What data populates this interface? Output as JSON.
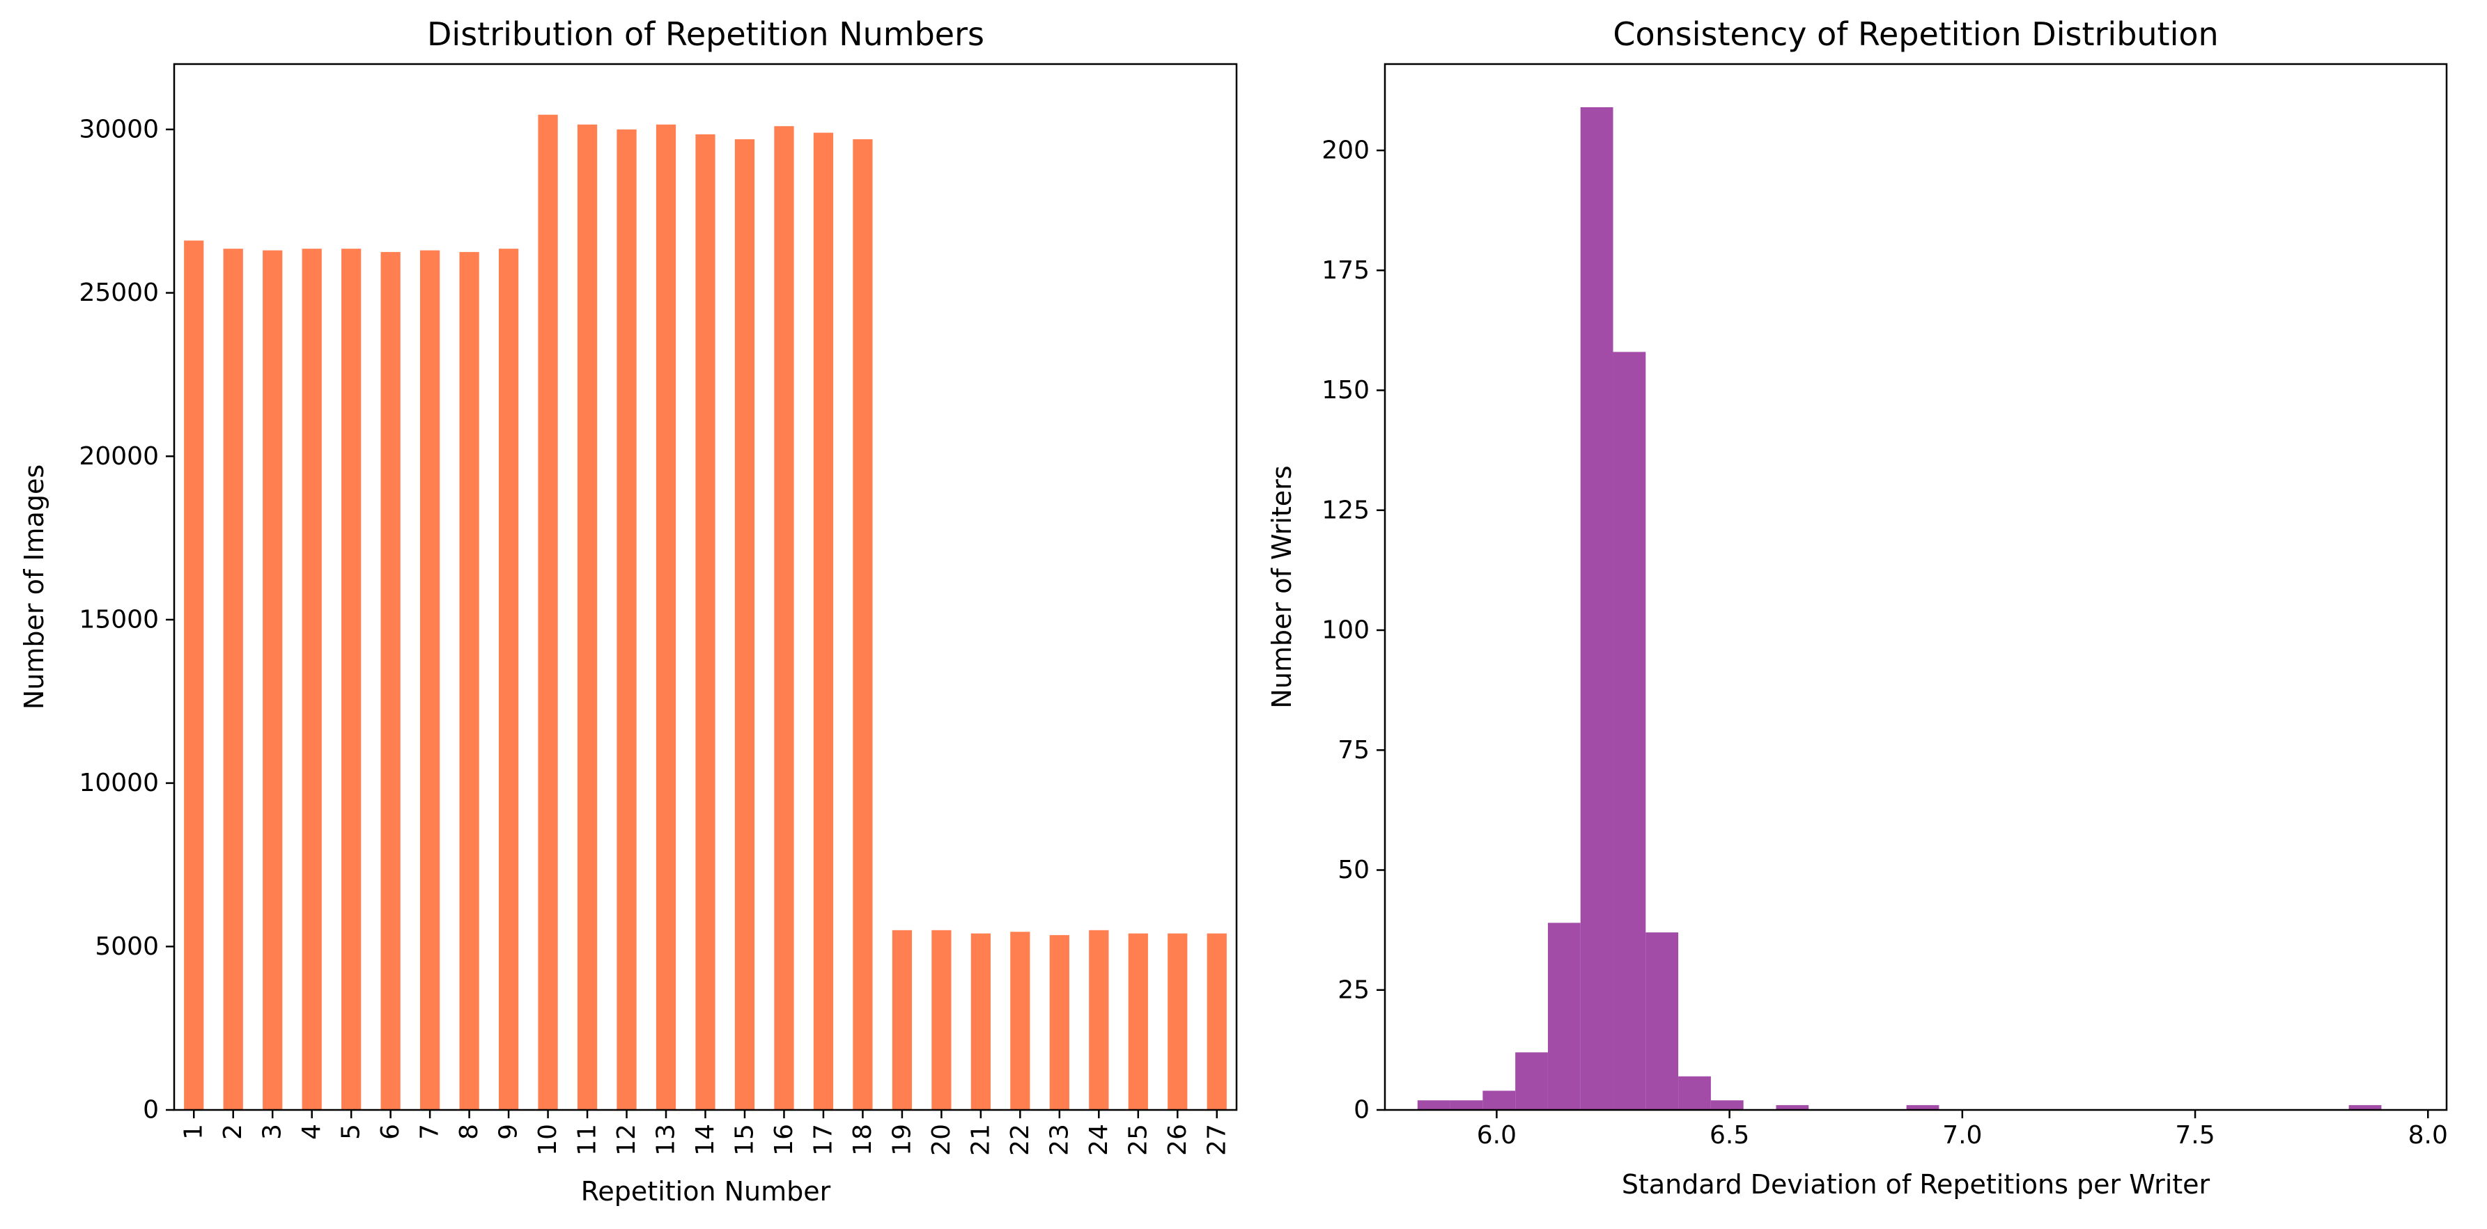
{
  "chart_data": [
    {
      "type": "bar",
      "title": "Distribution of Repetition Numbers",
      "xlabel": "Repetition Number",
      "ylabel": "Number of Images",
      "categories": [
        "1",
        "2",
        "3",
        "4",
        "5",
        "6",
        "7",
        "8",
        "9",
        "10",
        "11",
        "12",
        "13",
        "14",
        "15",
        "16",
        "17",
        "18",
        "19",
        "20",
        "21",
        "22",
        "23",
        "24",
        "25",
        "26",
        "27"
      ],
      "values": [
        26600,
        26350,
        26300,
        26350,
        26350,
        26250,
        26300,
        26250,
        26350,
        30450,
        30150,
        30000,
        30150,
        29850,
        29700,
        30100,
        29900,
        29700,
        5500,
        5500,
        5400,
        5450,
        5350,
        5500,
        5400,
        5400,
        5400
      ],
      "ylim": [
        0,
        32000
      ],
      "yticks": [
        0,
        5000,
        10000,
        15000,
        20000,
        25000,
        30000
      ],
      "color": "#ff7f50",
      "grid": false
    },
    {
      "type": "bar",
      "subtype": "histogram",
      "title": "Consistency of Repetition Distribution",
      "xlabel": "Standard Deviation of Repetitions per Writer",
      "ylabel": "Number of Writers",
      "bins": [
        {
          "x0": 5.83,
          "x1": 5.9,
          "count": 2
        },
        {
          "x0": 5.9,
          "x1": 5.97,
          "count": 2
        },
        {
          "x0": 5.97,
          "x1": 6.04,
          "count": 4
        },
        {
          "x0": 6.04,
          "x1": 6.11,
          "count": 12
        },
        {
          "x0": 6.11,
          "x1": 6.18,
          "count": 39
        },
        {
          "x0": 6.18,
          "x1": 6.25,
          "count": 209
        },
        {
          "x0": 6.25,
          "x1": 6.32,
          "count": 158
        },
        {
          "x0": 6.32,
          "x1": 6.39,
          "count": 37
        },
        {
          "x0": 6.39,
          "x1": 6.46,
          "count": 7
        },
        {
          "x0": 6.46,
          "x1": 6.53,
          "count": 2
        },
        {
          "x0": 6.6,
          "x1": 6.67,
          "count": 1
        },
        {
          "x0": 6.88,
          "x1": 6.95,
          "count": 1
        },
        {
          "x0": 7.83,
          "x1": 7.9,
          "count": 1
        }
      ],
      "xlim": [
        5.76,
        8.04
      ],
      "ylim": [
        0,
        218
      ],
      "xticks": [
        6.0,
        6.5,
        7.0,
        7.5,
        8.0
      ],
      "xtick_labels": [
        "6.0",
        "6.5",
        "7.0",
        "7.5",
        "8.0"
      ],
      "yticks": [
        0,
        25,
        50,
        75,
        100,
        125,
        150,
        175,
        200
      ],
      "color": "#a24ca8",
      "grid": false
    }
  ]
}
